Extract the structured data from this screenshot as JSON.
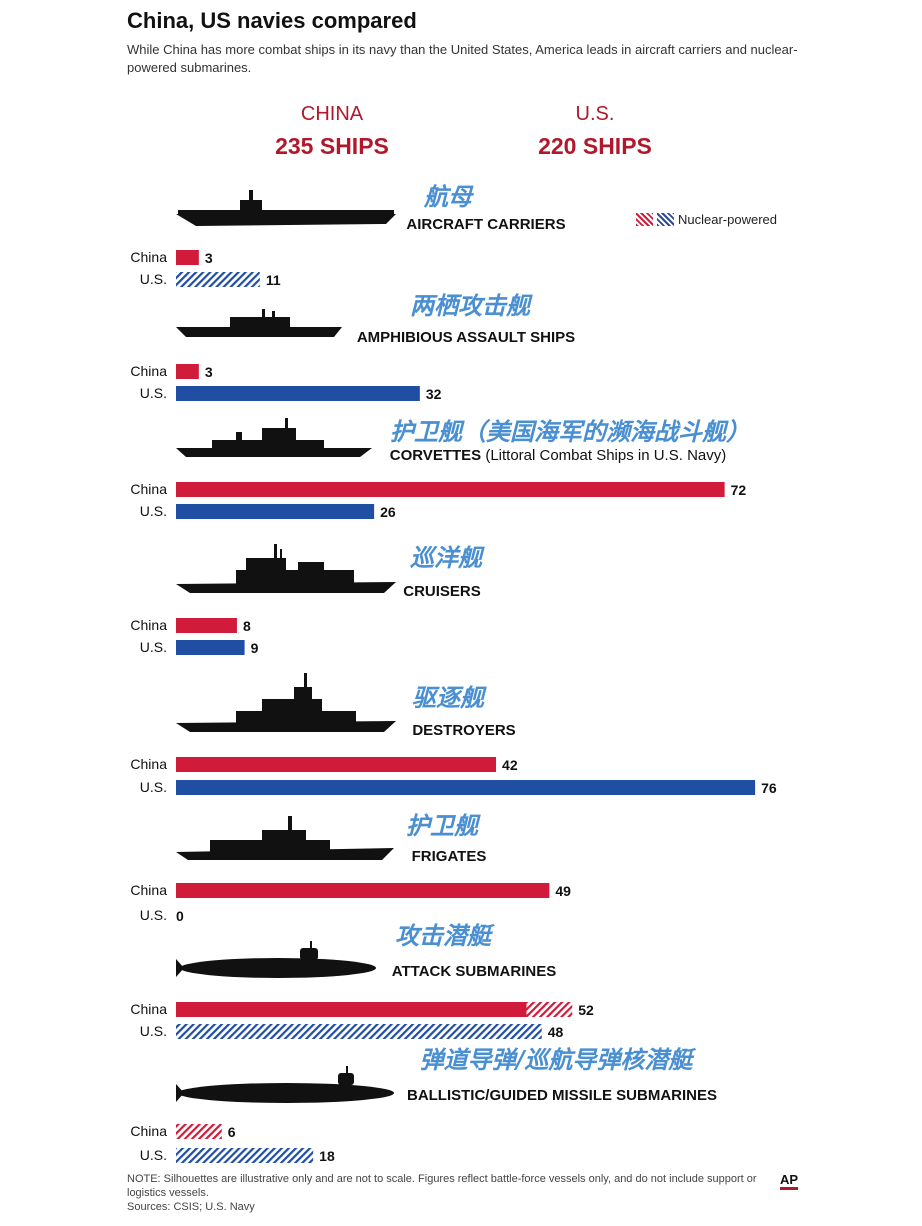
{
  "title": "China, US navies compared",
  "subtitle": "While China has more combat ships in its navy than the United States, America leads in aircraft carriers and nuclear-powered submarines.",
  "header": {
    "china": {
      "name": "CHINA",
      "count": "235 SHIPS"
    },
    "us": {
      "name": "U.S.",
      "count": "220 SHIPS"
    }
  },
  "legend_label": "Nuclear-powered",
  "note": "NOTE: Silhouettes are illustrative only and are not to scale. Figures reflect battle-force vessels only, and do not include support or logistics vessels.",
  "sources": "Sources: CSIS; U.S. Navy",
  "logo_text": "AP",
  "colors": {
    "china": "#d01c3a",
    "us": "#1f4ea3",
    "label_cn": "#4a8fd1"
  },
  "chart_data": {
    "type": "bar",
    "orientation": "horizontal",
    "series_names": [
      "China",
      "U.S."
    ],
    "groups": [
      {
        "name_cn": "航母",
        "name": "AIRCRAFT CARRIERS",
        "china": 3,
        "us": 11,
        "china_nuclear": 0,
        "us_nuclear": 11
      },
      {
        "name_cn": "两栖攻击舰",
        "name": "AMPHIBIOUS ASSAULT SHIPS",
        "china": 3,
        "us": 32,
        "china_nuclear": 0,
        "us_nuclear": 0
      },
      {
        "name_cn": "护卫舰（美国海军的濒海战斗舰）",
        "name": "CORVETTES",
        "name_note": "(Littoral Combat Ships in U.S. Navy)",
        "china": 72,
        "us": 26,
        "china_nuclear": 0,
        "us_nuclear": 0
      },
      {
        "name_cn": "巡洋舰",
        "name": "CRUISERS",
        "china": 8,
        "us": 9,
        "china_nuclear": 0,
        "us_nuclear": 0
      },
      {
        "name_cn": "驱逐舰",
        "name": "DESTROYERS",
        "china": 42,
        "us": 76,
        "china_nuclear": 0,
        "us_nuclear": 0
      },
      {
        "name_cn": "护卫舰",
        "name": "FRIGATES",
        "china": 49,
        "us": 0,
        "china_nuclear": 0,
        "us_nuclear": 0
      },
      {
        "name_cn": "攻击潜艇",
        "name": "ATTACK SUBMARINES",
        "china": 52,
        "us": 48,
        "china_nuclear": 6,
        "us_nuclear": 48
      },
      {
        "name_cn": "弹道导弹/巡航导弹核潜艇",
        "name": "BALLISTIC/GUIDED MISSILE SUBMARINES",
        "china": 6,
        "us": 18,
        "china_nuclear": 6,
        "us_nuclear": 18
      }
    ]
  }
}
